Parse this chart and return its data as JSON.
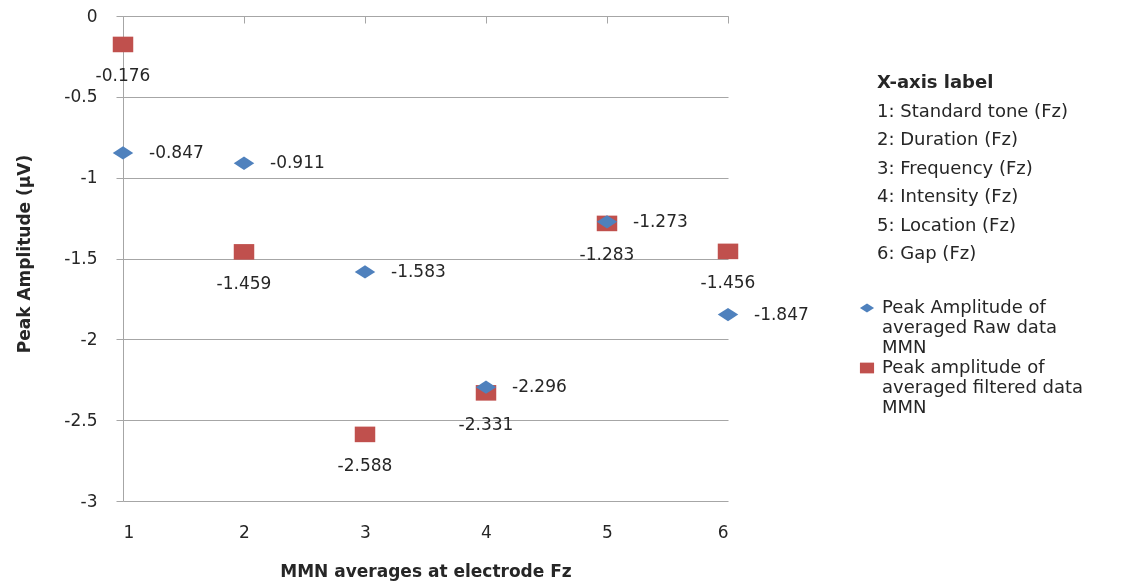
{
  "chart_data": {
    "type": "scatter",
    "xlabel": "MMN averages at electrode Fz",
    "ylabel": "Peak Amplitude (µV)",
    "x": [
      1,
      2,
      3,
      4,
      5,
      6
    ],
    "series": [
      {
        "name": "Peak Amplitude of averaged Raw data MMN",
        "color": "#4f81bd",
        "marker": "diamond",
        "values": [
          -0.847,
          -0.911,
          -1.583,
          -2.296,
          -1.273,
          -1.847
        ]
      },
      {
        "name": "Peak amplitude of averaged filtered data MMN",
        "color": "#c0504d",
        "marker": "square",
        "values": [
          -0.176,
          -1.459,
          -2.588,
          -2.331,
          -1.283,
          -1.456
        ]
      }
    ],
    "xlim": [
      1,
      6
    ],
    "xticks": [
      1,
      2,
      3,
      4,
      5,
      6
    ],
    "ylim": [
      -3,
      0
    ],
    "yticks": [
      -3,
      -2.5,
      -2,
      -1.5,
      -1,
      -0.5,
      0
    ],
    "grid": "y",
    "legend": "right",
    "data_labels": true,
    "annotations": [
      "X-axis label",
      "1: Standard tone (Fz)",
      "2: Duration (Fz)",
      "3: Frequency (Fz)",
      "4: Intensity (Fz)",
      "5: Location (Fz)",
      "6: Gap (Fz)"
    ]
  }
}
